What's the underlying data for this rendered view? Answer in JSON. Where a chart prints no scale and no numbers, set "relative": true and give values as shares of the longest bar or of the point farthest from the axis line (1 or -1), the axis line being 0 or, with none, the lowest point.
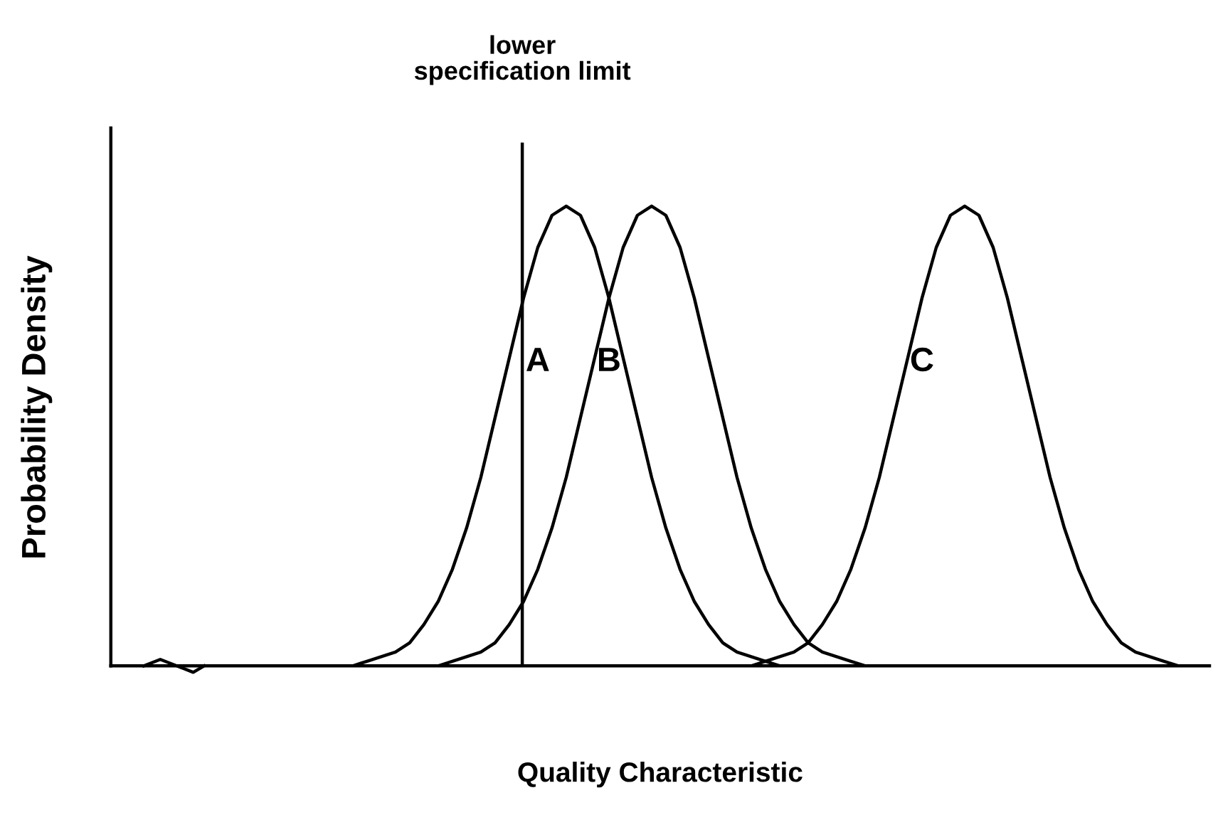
{
  "chart_data": {
    "type": "line",
    "relative": true,
    "xlabel": "Quality Characteristic",
    "ylabel": "Probability Density",
    "legend": false,
    "grid": false,
    "marker": "none",
    "line_style": "solid",
    "categories": [
      null,
      null,
      null,
      null,
      null,
      null,
      null,
      null,
      null,
      null,
      null,
      null,
      null,
      null,
      null,
      null,
      null,
      null,
      null,
      null,
      null,
      null,
      null,
      null,
      null,
      null,
      null,
      null,
      null,
      null,
      null,
      null,
      null,
      null,
      null,
      null,
      null,
      null,
      null,
      null,
      null,
      null,
      null,
      null,
      null,
      null,
      null,
      null,
      null,
      null,
      null,
      null,
      null,
      null,
      null,
      null,
      null,
      null,
      null,
      null,
      null,
      null,
      null,
      null,
      null,
      null,
      null,
      null,
      null,
      null,
      null,
      null,
      null,
      null,
      null,
      null,
      null,
      null
    ],
    "annotations": [
      "lower\nspecification limit"
    ],
    "series": [
      {
        "name": "A",
        "color": "#000000",
        "values": [
          null,
          null,
          null,
          null,
          null,
          null,
          null,
          null,
          null,
          null,
          null,
          null,
          null,
          null,
          null,
          null,
          null,
          0,
          0.01,
          0.02,
          0.03,
          0.05,
          0.09,
          0.14,
          0.21,
          0.3,
          0.41,
          0.54,
          0.67,
          0.8,
          0.91,
          0.98,
          1,
          0.98,
          0.91,
          0.8,
          0.67,
          0.54,
          0.41,
          0.3,
          0.21,
          0.14,
          0.09,
          0.05,
          0.03,
          0.02,
          0.01,
          0,
          null,
          null,
          null,
          null,
          null,
          null,
          null,
          null,
          null,
          null,
          null,
          null,
          null,
          null,
          null,
          null,
          null,
          null,
          null,
          null,
          null,
          null,
          null,
          null,
          null,
          null,
          null,
          null,
          null,
          null
        ]
      },
      {
        "name": "B",
        "color": "#000000",
        "values": [
          null,
          null,
          null,
          null,
          null,
          null,
          null,
          null,
          null,
          null,
          null,
          null,
          null,
          null,
          null,
          null,
          null,
          null,
          null,
          null,
          null,
          null,
          null,
          0,
          0.01,
          0.02,
          0.03,
          0.05,
          0.09,
          0.14,
          0.21,
          0.3,
          0.41,
          0.54,
          0.67,
          0.8,
          0.91,
          0.98,
          1,
          0.98,
          0.91,
          0.8,
          0.67,
          0.54,
          0.41,
          0.3,
          0.21,
          0.14,
          0.09,
          0.05,
          0.03,
          0.02,
          0.01,
          0,
          null,
          null,
          null,
          null,
          null,
          null,
          null,
          null,
          null,
          null,
          null,
          null,
          null,
          null,
          null,
          null,
          null,
          null,
          null,
          null,
          null,
          null,
          null,
          null
        ]
      },
      {
        "name": "C",
        "color": "#000000",
        "values": [
          null,
          null,
          null,
          null,
          null,
          null,
          null,
          null,
          null,
          null,
          null,
          null,
          null,
          null,
          null,
          null,
          null,
          null,
          null,
          null,
          null,
          null,
          null,
          null,
          null,
          null,
          null,
          null,
          null,
          null,
          null,
          null,
          null,
          null,
          null,
          null,
          null,
          null,
          null,
          null,
          null,
          null,
          null,
          null,
          null,
          0,
          0.01,
          0.02,
          0.03,
          0.05,
          0.09,
          0.14,
          0.21,
          0.3,
          0.41,
          0.54,
          0.67,
          0.8,
          0.91,
          0.98,
          1,
          0.98,
          0.91,
          0.8,
          0.67,
          0.54,
          0.41,
          0.3,
          0.21,
          0.14,
          0.09,
          0.05,
          0.03,
          0.02,
          0.01,
          0,
          null,
          null
        ]
      }
    ]
  }
}
